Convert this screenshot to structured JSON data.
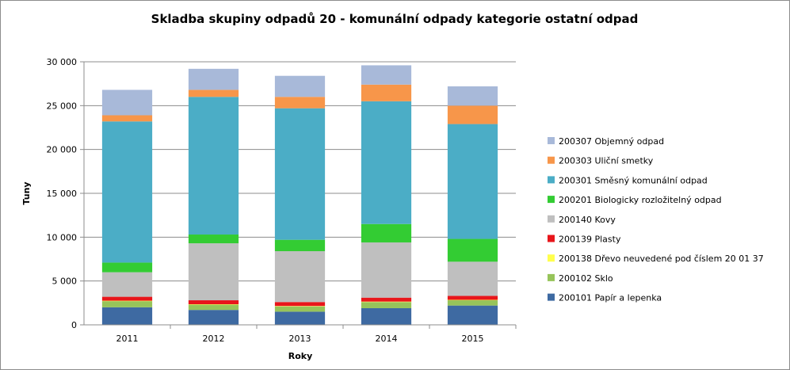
{
  "chart_data": {
    "type": "bar",
    "stacked": true,
    "title": "Skladba skupiny  odpadů 20 - komunální odpady kategorie ostatní odpad",
    "xlabel": "Roky",
    "ylabel": "Tuny",
    "categories": [
      "2011",
      "2012",
      "2013",
      "2014",
      "2015"
    ],
    "ylim": [
      0,
      30000
    ],
    "yticks": [
      0,
      5000,
      10000,
      15000,
      20000,
      25000,
      30000
    ],
    "ytick_labels": [
      "0",
      "5 000",
      "10 000",
      "15 000",
      "20 000",
      "25 000",
      "30 000"
    ],
    "grid": true,
    "legend_position": "right",
    "series": [
      {
        "name": "200101 Papír a lepenka",
        "color": "#3e6aa2",
        "values": [
          2000,
          1700,
          1500,
          1900,
          2200
        ]
      },
      {
        "name": "200102 Sklo",
        "color": "#97c45a",
        "values": [
          700,
          600,
          600,
          700,
          600
        ]
      },
      {
        "name": "200138 Dřevo neuvedené pod číslem 20 01 37",
        "color": "#ffff4d",
        "values": [
          50,
          50,
          50,
          50,
          50
        ]
      },
      {
        "name": "200139 Plasty",
        "color": "#e8161b",
        "values": [
          450,
          450,
          450,
          450,
          450
        ]
      },
      {
        "name": "200140 Kovy",
        "color": "#bfbfbf",
        "values": [
          2800,
          6500,
          5800,
          6300,
          3900
        ]
      },
      {
        "name": "200201 Biologicky rozložitelný  odpad",
        "color": "#33cc33",
        "values": [
          1100,
          1000,
          1300,
          2100,
          2600
        ]
      },
      {
        "name": "200301 Směsný komunální  odpad",
        "color": "#4badc6",
        "values": [
          16100,
          15700,
          15000,
          14000,
          13100
        ]
      },
      {
        "name": "200303 Uliční smetky",
        "color": "#f7964a",
        "values": [
          700,
          800,
          1300,
          1900,
          2100
        ]
      },
      {
        "name": "200307 Objemný odpad",
        "color": "#a8b9d9",
        "values": [
          2900,
          2400,
          2400,
          2200,
          2200
        ]
      }
    ]
  }
}
